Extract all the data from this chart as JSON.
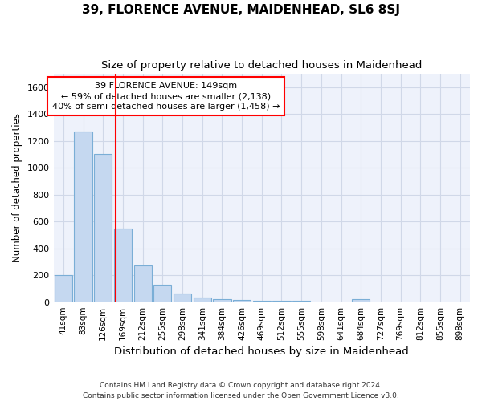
{
  "title": "39, FLORENCE AVENUE, MAIDENHEAD, SL6 8SJ",
  "subtitle": "Size of property relative to detached houses in Maidenhead",
  "xlabel": "Distribution of detached houses by size in Maidenhead",
  "ylabel": "Number of detached properties",
  "categories": [
    "41sqm",
    "83sqm",
    "126sqm",
    "169sqm",
    "212sqm",
    "255sqm",
    "298sqm",
    "341sqm",
    "384sqm",
    "426sqm",
    "469sqm",
    "512sqm",
    "555sqm",
    "598sqm",
    "641sqm",
    "684sqm",
    "727sqm",
    "769sqm",
    "812sqm",
    "855sqm",
    "898sqm"
  ],
  "bar_heights": [
    200,
    1270,
    1100,
    550,
    270,
    130,
    65,
    35,
    20,
    15,
    10,
    10,
    10,
    0,
    0,
    20,
    0,
    0,
    0,
    0,
    0
  ],
  "bar_color": "#c5d8f0",
  "bar_edge_color": "#7aaed6",
  "ylim": [
    0,
    1700
  ],
  "yticks": [
    0,
    200,
    400,
    600,
    800,
    1000,
    1200,
    1400,
    1600
  ],
  "red_line_x": 2.62,
  "annotation_line1": "39 FLORENCE AVENUE: 149sqm",
  "annotation_line2": "← 59% of detached houses are smaller (2,138)",
  "annotation_line3": "40% of semi-detached houses are larger (1,458) →",
  "annotation_box_color": "white",
  "annotation_box_edge": "red",
  "footer_line1": "Contains HM Land Registry data © Crown copyright and database right 2024.",
  "footer_line2": "Contains public sector information licensed under the Open Government Licence v3.0.",
  "bg_color": "#ffffff",
  "plot_bg_color": "#eef2fb",
  "grid_color": "#d0d8e8",
  "title_fontsize": 11,
  "subtitle_fontsize": 9.5,
  "xlabel_fontsize": 9.5,
  "ylabel_fontsize": 8.5,
  "tick_fontsize": 7.5,
  "footer_fontsize": 6.5
}
